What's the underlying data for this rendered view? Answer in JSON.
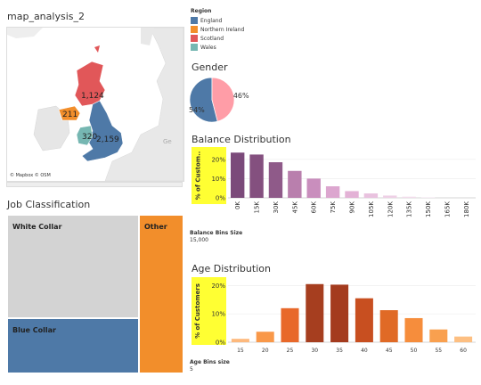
{
  "map": {
    "title": "map_analysis_2",
    "attribution": "© Mapbox © OSM",
    "country_labels": [
      "Ge"
    ],
    "bubble_labels": [
      {
        "region": "Scotland",
        "value": "1,124"
      },
      {
        "region": "Northern Ireland",
        "value": "211"
      },
      {
        "region": "Wales",
        "value": "320"
      },
      {
        "region": "England",
        "value": "2,159"
      }
    ]
  },
  "legend": {
    "title": "Region",
    "items": [
      {
        "name": "England",
        "color": "#4e79a7"
      },
      {
        "name": "Northern Ireland",
        "color": "#f28e2b"
      },
      {
        "name": "Scotland",
        "color": "#e15759"
      },
      {
        "name": "Wales",
        "color": "#76b7b2"
      }
    ]
  },
  "gender": {
    "title": "Gender",
    "chart_data": {
      "type": "pie",
      "slices": [
        {
          "label": "54%",
          "value": 54,
          "color": "#4e79a7"
        },
        {
          "label": "46%",
          "value": 46,
          "color": "#ff9da7"
        }
      ]
    }
  },
  "balance": {
    "title": "Balance Distribution",
    "ylabel": "% of Custom..",
    "param_label": "Balance Bins Size",
    "param_value": "15,000",
    "chart_data": {
      "type": "bar",
      "categories": [
        "0K",
        "15K",
        "30K",
        "45K",
        "60K",
        "75K",
        "90K",
        "105K",
        "120K",
        "135K",
        "150K",
        "165K",
        "180K"
      ],
      "values": [
        23.5,
        22.5,
        18.5,
        14,
        10,
        6,
        3.5,
        2.3,
        1.2,
        0.6,
        0.2,
        0,
        0
      ],
      "colors": [
        "#7b4a7a",
        "#84507f",
        "#8f5a89",
        "#b97fad",
        "#c98ebd",
        "#dca6cf",
        "#e3b2d6",
        "#e9c2df",
        "#eed0e6",
        "#f2dbeb",
        "#f5e3ef",
        "#f7e8f2",
        "#f7e8f2"
      ],
      "yticks": [
        "0%",
        "10%",
        "20%"
      ],
      "ylim": [
        0,
        25
      ]
    }
  },
  "age": {
    "title": "Age Distribution",
    "ylabel": "% of Customers",
    "param_label": "Age Bins size",
    "param_value": "5",
    "chart_data": {
      "type": "bar",
      "categories": [
        "15",
        "20",
        "25",
        "30",
        "35",
        "40",
        "45",
        "50",
        "55",
        "60"
      ],
      "values": [
        1.2,
        3.7,
        12,
        20.5,
        20.3,
        15.5,
        11.3,
        8.5,
        4.5,
        2
      ],
      "colors": [
        "#fdb97d",
        "#f99849",
        "#e8682a",
        "#a63e1f",
        "#a43b1e",
        "#c84f20",
        "#e06a26",
        "#f68d3c",
        "#f9a04f",
        "#fdbf82"
      ],
      "yticks": [
        "0%",
        "10%",
        "20%"
      ],
      "ylim": [
        0,
        22
      ]
    }
  },
  "job": {
    "title": "Job Classification",
    "tiles": [
      {
        "label": "White Collar",
        "color": "#d3d3d3"
      },
      {
        "label": "Blue Collar",
        "color": "#4e79a7"
      },
      {
        "label": "Other",
        "color": "#f28e2b"
      }
    ]
  }
}
